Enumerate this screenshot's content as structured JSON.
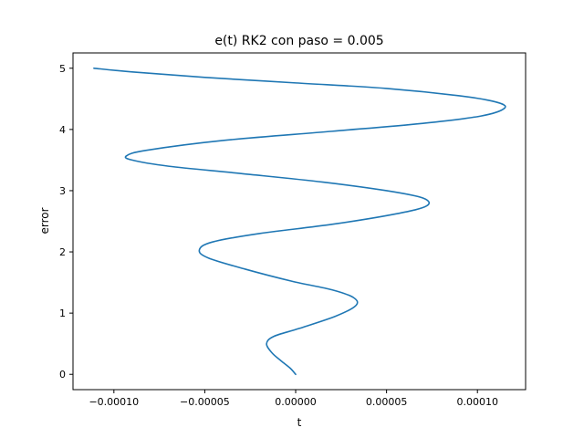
{
  "chart_data": {
    "type": "line",
    "title": "e(t) RK2 con paso = 0.005",
    "xlabel": "t",
    "ylabel": "error",
    "xlim": [
      -0.0001225,
      0.0001265
    ],
    "ylim": [
      -0.25,
      5.25
    ],
    "xticks": [
      {
        "value": -0.0001,
        "label": "−0.00010"
      },
      {
        "value": -5e-05,
        "label": "−0.00005"
      },
      {
        "value": 0.0,
        "label": "0.00000"
      },
      {
        "value": 5e-05,
        "label": "0.00005"
      },
      {
        "value": 0.0001,
        "label": "0.00010"
      }
    ],
    "yticks": [
      {
        "value": 0,
        "label": "0"
      },
      {
        "value": 1,
        "label": "1"
      },
      {
        "value": 2,
        "label": "2"
      },
      {
        "value": 3,
        "label": "3"
      },
      {
        "value": 4,
        "label": "4"
      },
      {
        "value": 5,
        "label": "5"
      }
    ],
    "grid": false,
    "series": [
      {
        "color": "#1f77b4",
        "points": [
          [
            0.0,
            0.0
          ],
          [
            -3e-06,
            0.1
          ],
          [
            -8e-06,
            0.22
          ],
          [
            -1.3e-05,
            0.35
          ],
          [
            -1.6e-05,
            0.5
          ],
          [
            -1.2e-05,
            0.62
          ],
          [
            2e-06,
            0.75
          ],
          [
            2.2e-05,
            0.95
          ],
          [
            3.3e-05,
            1.12
          ],
          [
            3.2e-05,
            1.25
          ],
          [
            2e-05,
            1.38
          ],
          [
            -2e-06,
            1.52
          ],
          [
            -2.8e-05,
            1.72
          ],
          [
            -4.8e-05,
            1.9
          ],
          [
            -5.3e-05,
            2.03
          ],
          [
            -4.6e-05,
            2.16
          ],
          [
            -2e-05,
            2.3
          ],
          [
            2e-05,
            2.45
          ],
          [
            5.5e-05,
            2.62
          ],
          [
            7.2e-05,
            2.75
          ],
          [
            7e-05,
            2.88
          ],
          [
            5e-05,
            3.0
          ],
          [
            1.5e-05,
            3.14
          ],
          [
            -3e-05,
            3.28
          ],
          [
            -7e-05,
            3.4
          ],
          [
            -9e-05,
            3.5
          ],
          [
            -9.3e-05,
            3.57
          ],
          [
            -8.2e-05,
            3.66
          ],
          [
            -4e-05,
            3.82
          ],
          [
            2e-05,
            3.97
          ],
          [
            7e-05,
            4.1
          ],
          [
            0.000102,
            4.22
          ],
          [
            0.000115,
            4.35
          ],
          [
            0.00011,
            4.45
          ],
          [
            9e-05,
            4.55
          ],
          [
            5e-05,
            4.67
          ],
          [
            0.0,
            4.76
          ],
          [
            -5e-05,
            4.85
          ],
          [
            -9e-05,
            4.94
          ],
          [
            -0.000111,
            5.0
          ]
        ]
      }
    ]
  }
}
